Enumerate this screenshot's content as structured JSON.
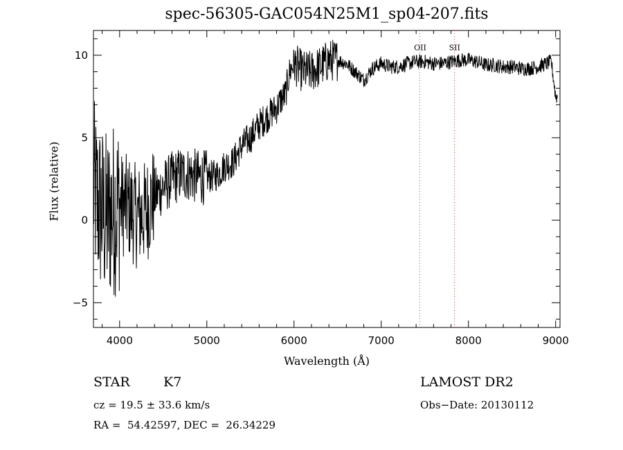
{
  "chart_data": {
    "type": "line",
    "title": "spec-56305-GAC054N25M1_sp04-207.fits",
    "xlabel": "Wavelength (Å)",
    "ylabel": "Flux (relative)",
    "xlim": [
      3700,
      9050
    ],
    "ylim": [
      -6.5,
      11.5
    ],
    "x_ticks": [
      4000,
      5000,
      6000,
      7000,
      8000,
      9000
    ],
    "y_ticks": [
      -5,
      0,
      5,
      10
    ],
    "series": [
      {
        "x": [
          3700,
          3750,
          3800,
          3850,
          3900,
          3950,
          4000,
          4100,
          4200,
          4300,
          4400,
          4500,
          4600,
          4700,
          4800,
          4900,
          5000,
          5100,
          5150,
          5200,
          5300,
          5400,
          5500,
          5600,
          5700,
          5800,
          5850,
          5900,
          5950,
          6000,
          6100,
          6200,
          6300,
          6400,
          6500,
          6600,
          6700,
          6800,
          6900,
          7000,
          7100,
          7200,
          7300,
          7400,
          7500,
          7600,
          7700,
          7800,
          7900,
          8000,
          8100,
          8200,
          8300,
          8400,
          8500,
          8600,
          8700,
          8800,
          8900,
          8950,
          9000
        ],
        "y": [
          2.0,
          1.0,
          0.5,
          0.0,
          0.5,
          0.8,
          1.0,
          0.8,
          0.2,
          0.5,
          1.5,
          2.0,
          2.5,
          2.8,
          2.8,
          2.6,
          2.6,
          2.7,
          2.9,
          3.3,
          3.5,
          4.5,
          5.0,
          5.8,
          6.3,
          6.8,
          7.3,
          7.6,
          9.0,
          9.5,
          9.0,
          9.0,
          9.3,
          9.7,
          9.7,
          9.5,
          9.0,
          8.5,
          9.2,
          9.5,
          9.3,
          9.3,
          9.5,
          9.6,
          9.6,
          9.5,
          9.5,
          9.6,
          9.7,
          9.7,
          9.6,
          9.4,
          9.4,
          9.3,
          9.3,
          9.2,
          9.2,
          9.3,
          9.5,
          9.6,
          7.5
        ]
      }
    ],
    "markers": [
      {
        "label": "OII",
        "x": 7440,
        "color": "#e03030"
      },
      {
        "label": "SII",
        "x": 7840,
        "color": "#e03030"
      }
    ]
  },
  "info": {
    "class": "STAR",
    "subclass": "K7",
    "survey": "LAMOST DR2",
    "cz": "cz = 19.5 ± 33.6 km/s",
    "obs_date": "Obs−Date: 20130112",
    "radec": "RA =  54.42597, DEC =  26.34229"
  }
}
